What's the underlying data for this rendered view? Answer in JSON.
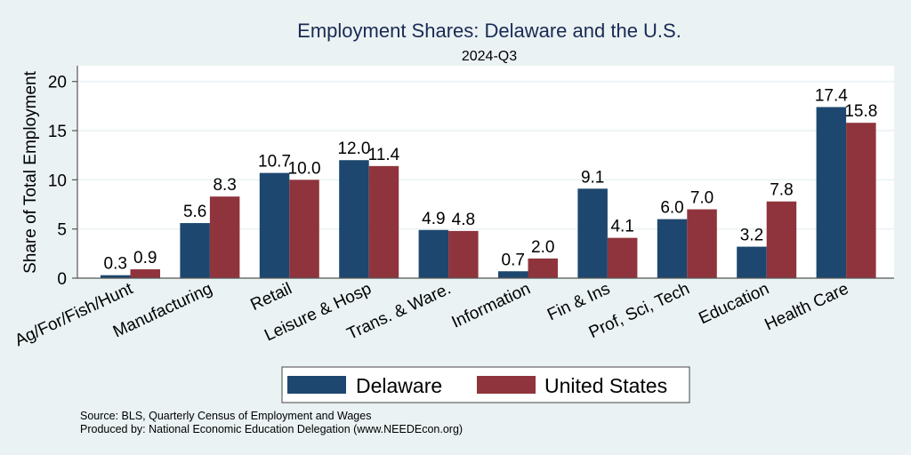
{
  "chart_data": {
    "type": "bar",
    "title": "Employment Shares: Delaware and the U.S.",
    "subtitle": "2024-Q3",
    "xlabel": "",
    "ylabel": "Share of Total Employment",
    "ylim": [
      0,
      21.6
    ],
    "yticks": [
      0,
      5,
      10,
      15,
      20
    ],
    "ytick_labels": [
      "0",
      "5",
      "10",
      "15",
      "20"
    ],
    "grid": true,
    "categories": [
      "Ag/For/Fish/Hunt",
      "Manufacturing",
      "Retail",
      "Leisure & Hosp",
      "Trans. & Ware.",
      "Information",
      "Fin & Ins",
      "Prof, Sci, Tech",
      "Education",
      "Health Care"
    ],
    "series": [
      {
        "name": "Delaware",
        "color": "#1d476f",
        "values": [
          0.3,
          5.6,
          10.7,
          12.0,
          4.9,
          0.7,
          9.1,
          6.0,
          3.2,
          17.4
        ],
        "labels": [
          "0.3",
          "5.6",
          "10.7",
          "12.0",
          "4.9",
          "0.7",
          "9.1",
          "6.0",
          "3.2",
          "17.4"
        ]
      },
      {
        "name": "United States",
        "color": "#8f343c",
        "values": [
          0.9,
          8.3,
          10.0,
          11.4,
          4.8,
          2.0,
          4.1,
          7.0,
          7.8,
          15.8
        ],
        "labels": [
          "0.9",
          "8.3",
          "10.0",
          "11.4",
          "4.8",
          "2.0",
          "4.1",
          "7.0",
          "7.8",
          "15.8"
        ]
      }
    ],
    "legend_position": "bottom-center",
    "notes": [
      "Source: BLS, Quarterly Census of Employment and Wages",
      "Produced by: National Economic Education Delegation (www.NEEDEcon.org)"
    ]
  }
}
